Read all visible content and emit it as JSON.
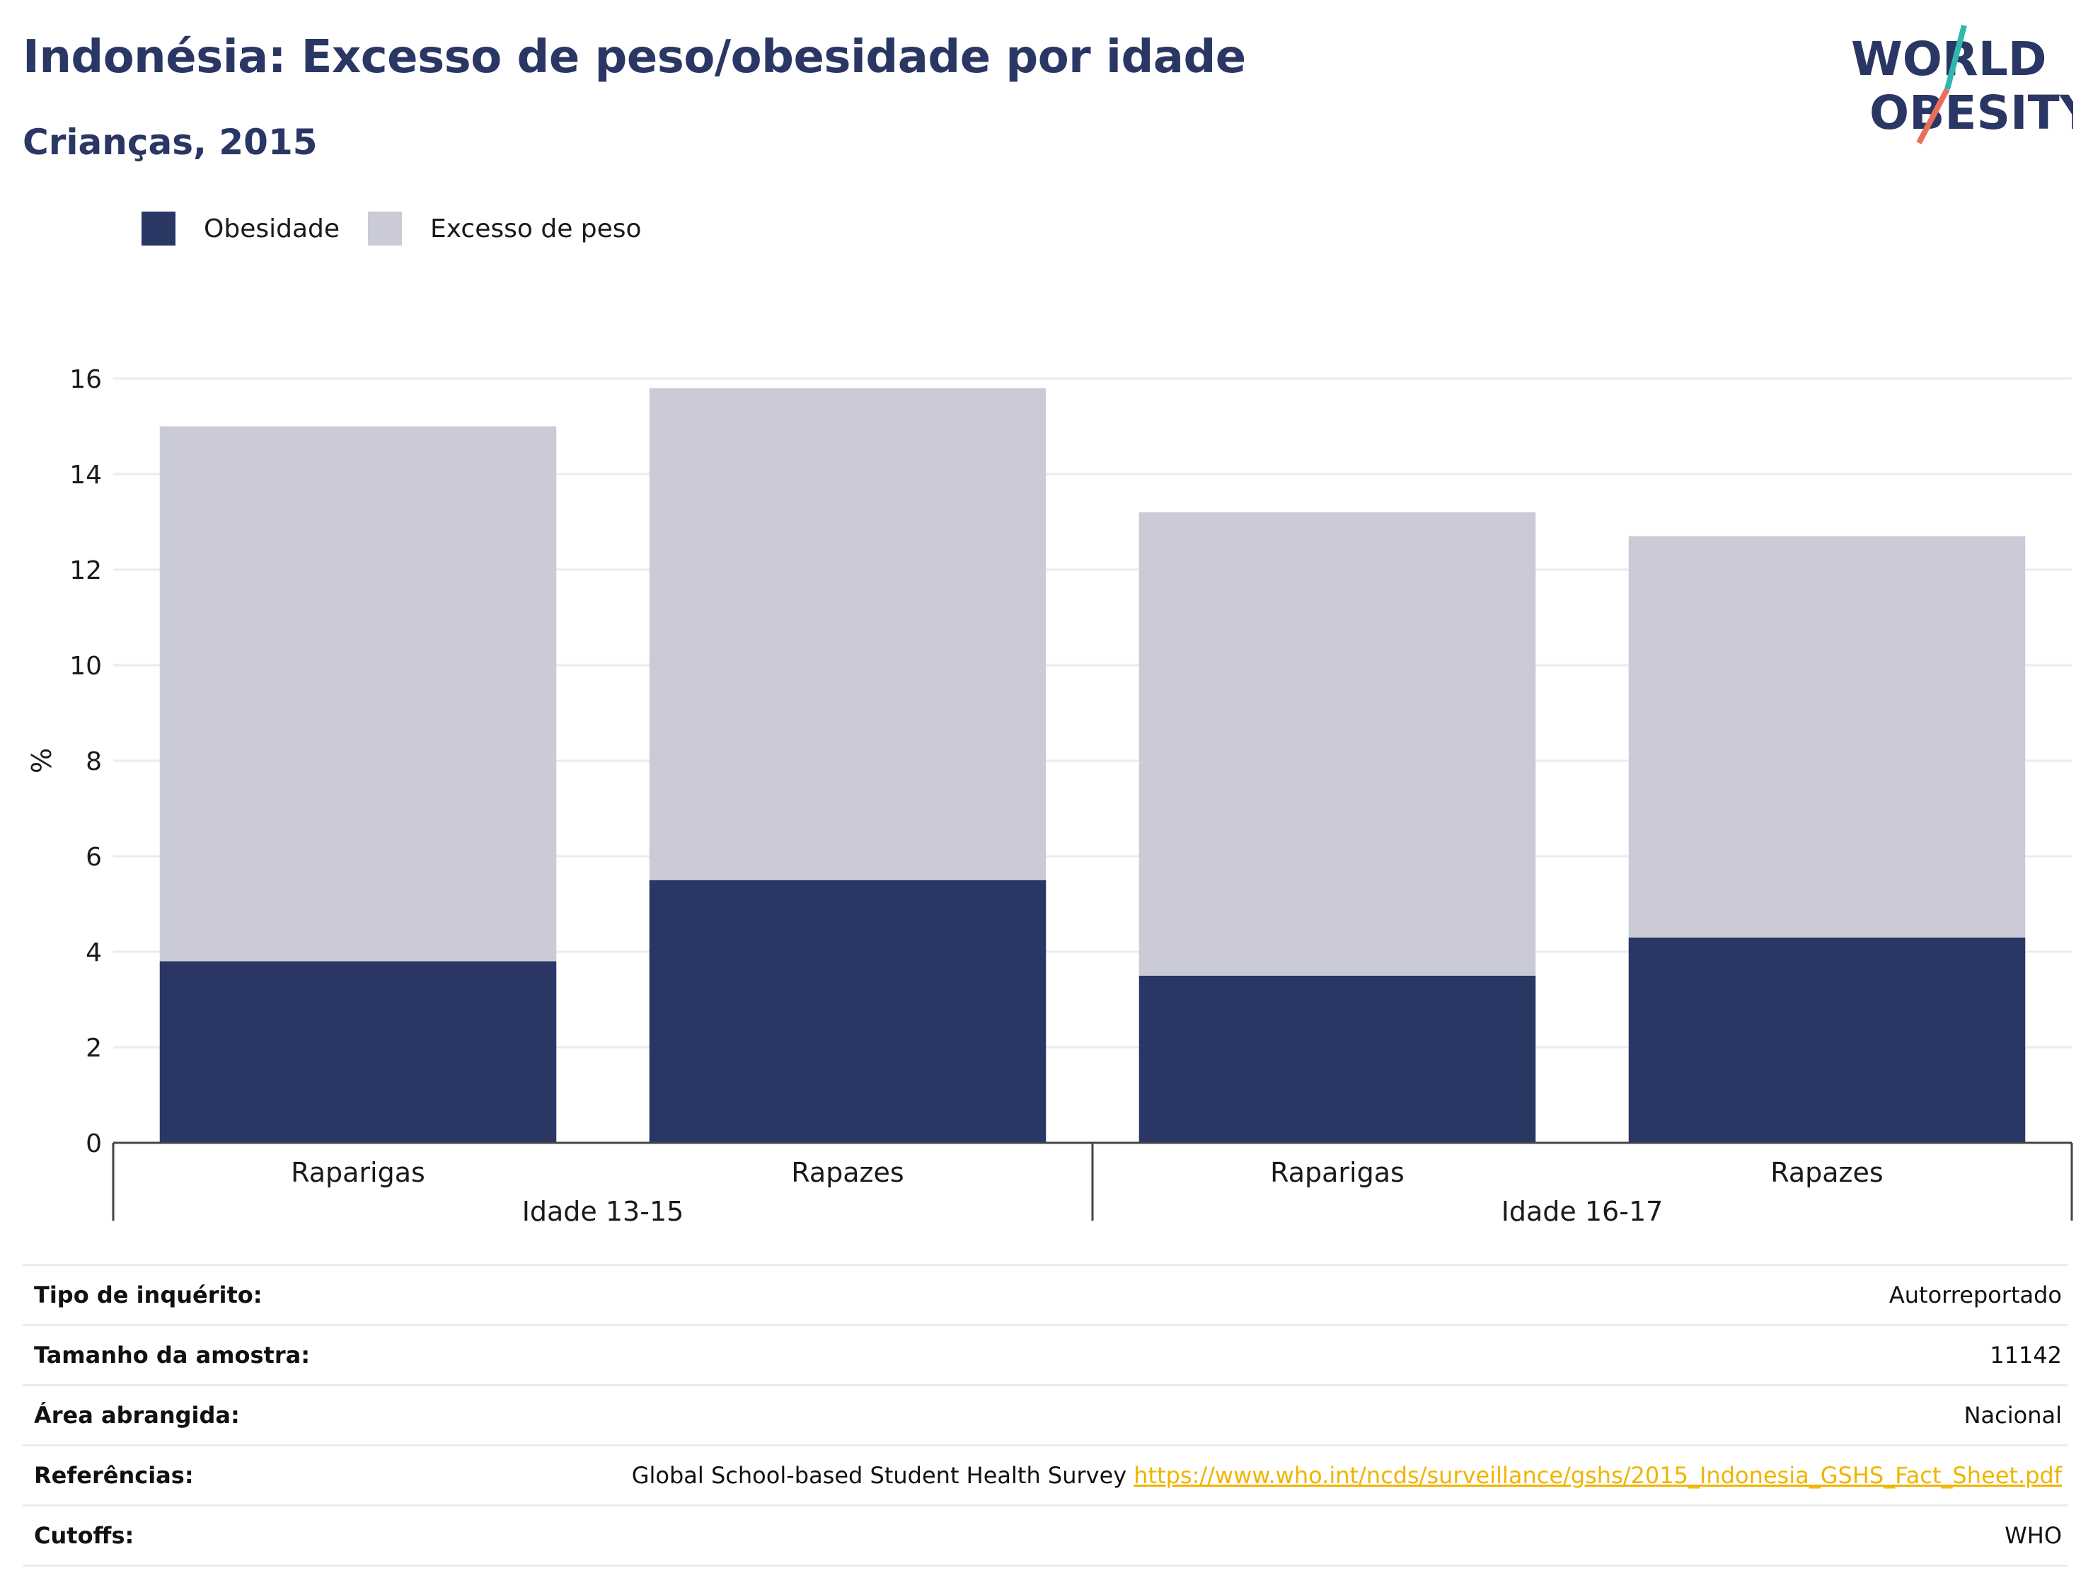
{
  "header": {
    "title": "Indonésia: Excesso de peso/obesidade por idade",
    "subtitle": "Crianças, 2015"
  },
  "logo": {
    "line1": "WORLD",
    "line2": "OBESITY",
    "accent_colors": [
      "#2fb7b0",
      "#e8705a"
    ]
  },
  "legend": [
    {
      "label": "Obesidade",
      "color": "#2a3664"
    },
    {
      "label": "Excesso de peso",
      "color": "#cacbd7"
    }
  ],
  "chart_data": {
    "type": "bar",
    "stacked": true,
    "ylabel": "%",
    "ylim": [
      0,
      16
    ],
    "yticks": [
      0,
      2,
      4,
      6,
      8,
      10,
      12,
      14,
      16
    ],
    "grid": true,
    "legend_position": "top-left",
    "groups": [
      "Idade 13-15",
      "Idade 16-17"
    ],
    "categories": [
      "Raparigas",
      "Rapazes",
      "Raparigas",
      "Rapazes"
    ],
    "category_groups": [
      0,
      0,
      1,
      1
    ],
    "series": [
      {
        "name": "Obesidade",
        "color": "#2a3664",
        "values": [
          3.8,
          5.5,
          3.5,
          4.3
        ]
      },
      {
        "name": "Excesso de peso",
        "color": "#cacbd7",
        "values": [
          11.2,
          10.3,
          9.7,
          8.4
        ]
      }
    ]
  },
  "info": [
    {
      "label": "Tipo de inquérito:",
      "value": "Autorreportado"
    },
    {
      "label": "Tamanho da amostra:",
      "value": "11142"
    },
    {
      "label": "Área abrangida:",
      "value": "Nacional"
    },
    {
      "label": "Referências:",
      "value": "Global School-based Student Health Survey",
      "link": "https://www.who.int/ncds/surveillance/gshs/2015_Indonesia_GSHS_Fact_Sheet.pdf"
    },
    {
      "label": "Cutoffs:",
      "value": "WHO"
    }
  ]
}
